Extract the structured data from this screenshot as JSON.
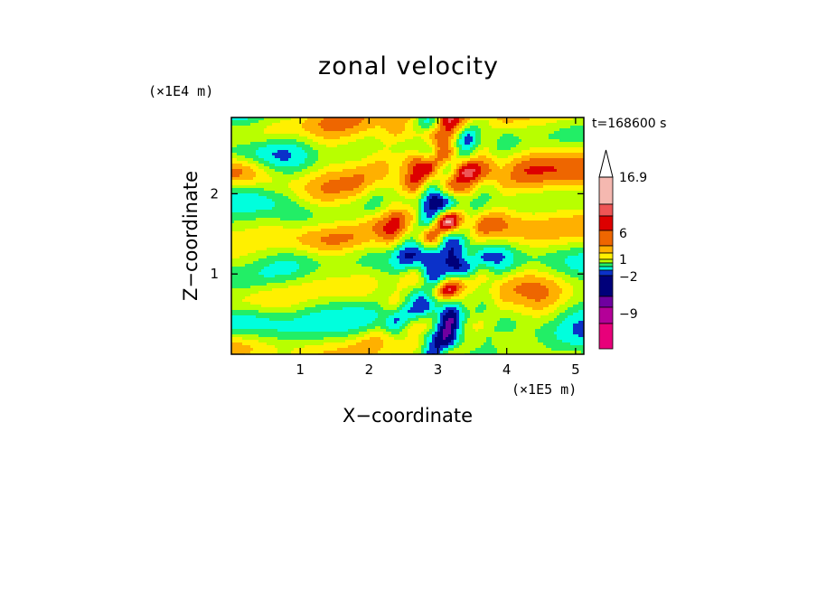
{
  "chart_data": {
    "type": "heatmap",
    "title": "zonal velocity",
    "xlabel": "X−coordinate",
    "ylabel": "Z−coordinate",
    "x_unit": "(×1E5 m)",
    "y_unit": "(×1E4 m)",
    "time_label": "t=168600 s",
    "xlim": [
      0,
      5.12
    ],
    "ylim": [
      0,
      2.95
    ],
    "x_ticks": [
      1,
      2,
      3,
      4,
      5
    ],
    "y_ticks": [
      1,
      2
    ],
    "colorbar": {
      "labels": [
        "16.9",
        "6",
        "1",
        "−2",
        "−9"
      ],
      "label_values": [
        16.9,
        6,
        1,
        -2,
        -9
      ],
      "colors": [
        "#e8007a",
        "#b40098",
        "#6f00a0",
        "#00007a",
        "#0b31c9",
        "#00ffdd",
        "#22ee66",
        "#b8ff00",
        "#fff000",
        "#ffb000",
        "#ee6600",
        "#dd0000",
        "#ee5555",
        "#f5b8b0",
        "#ffffff"
      ],
      "extend": "max"
    }
  }
}
